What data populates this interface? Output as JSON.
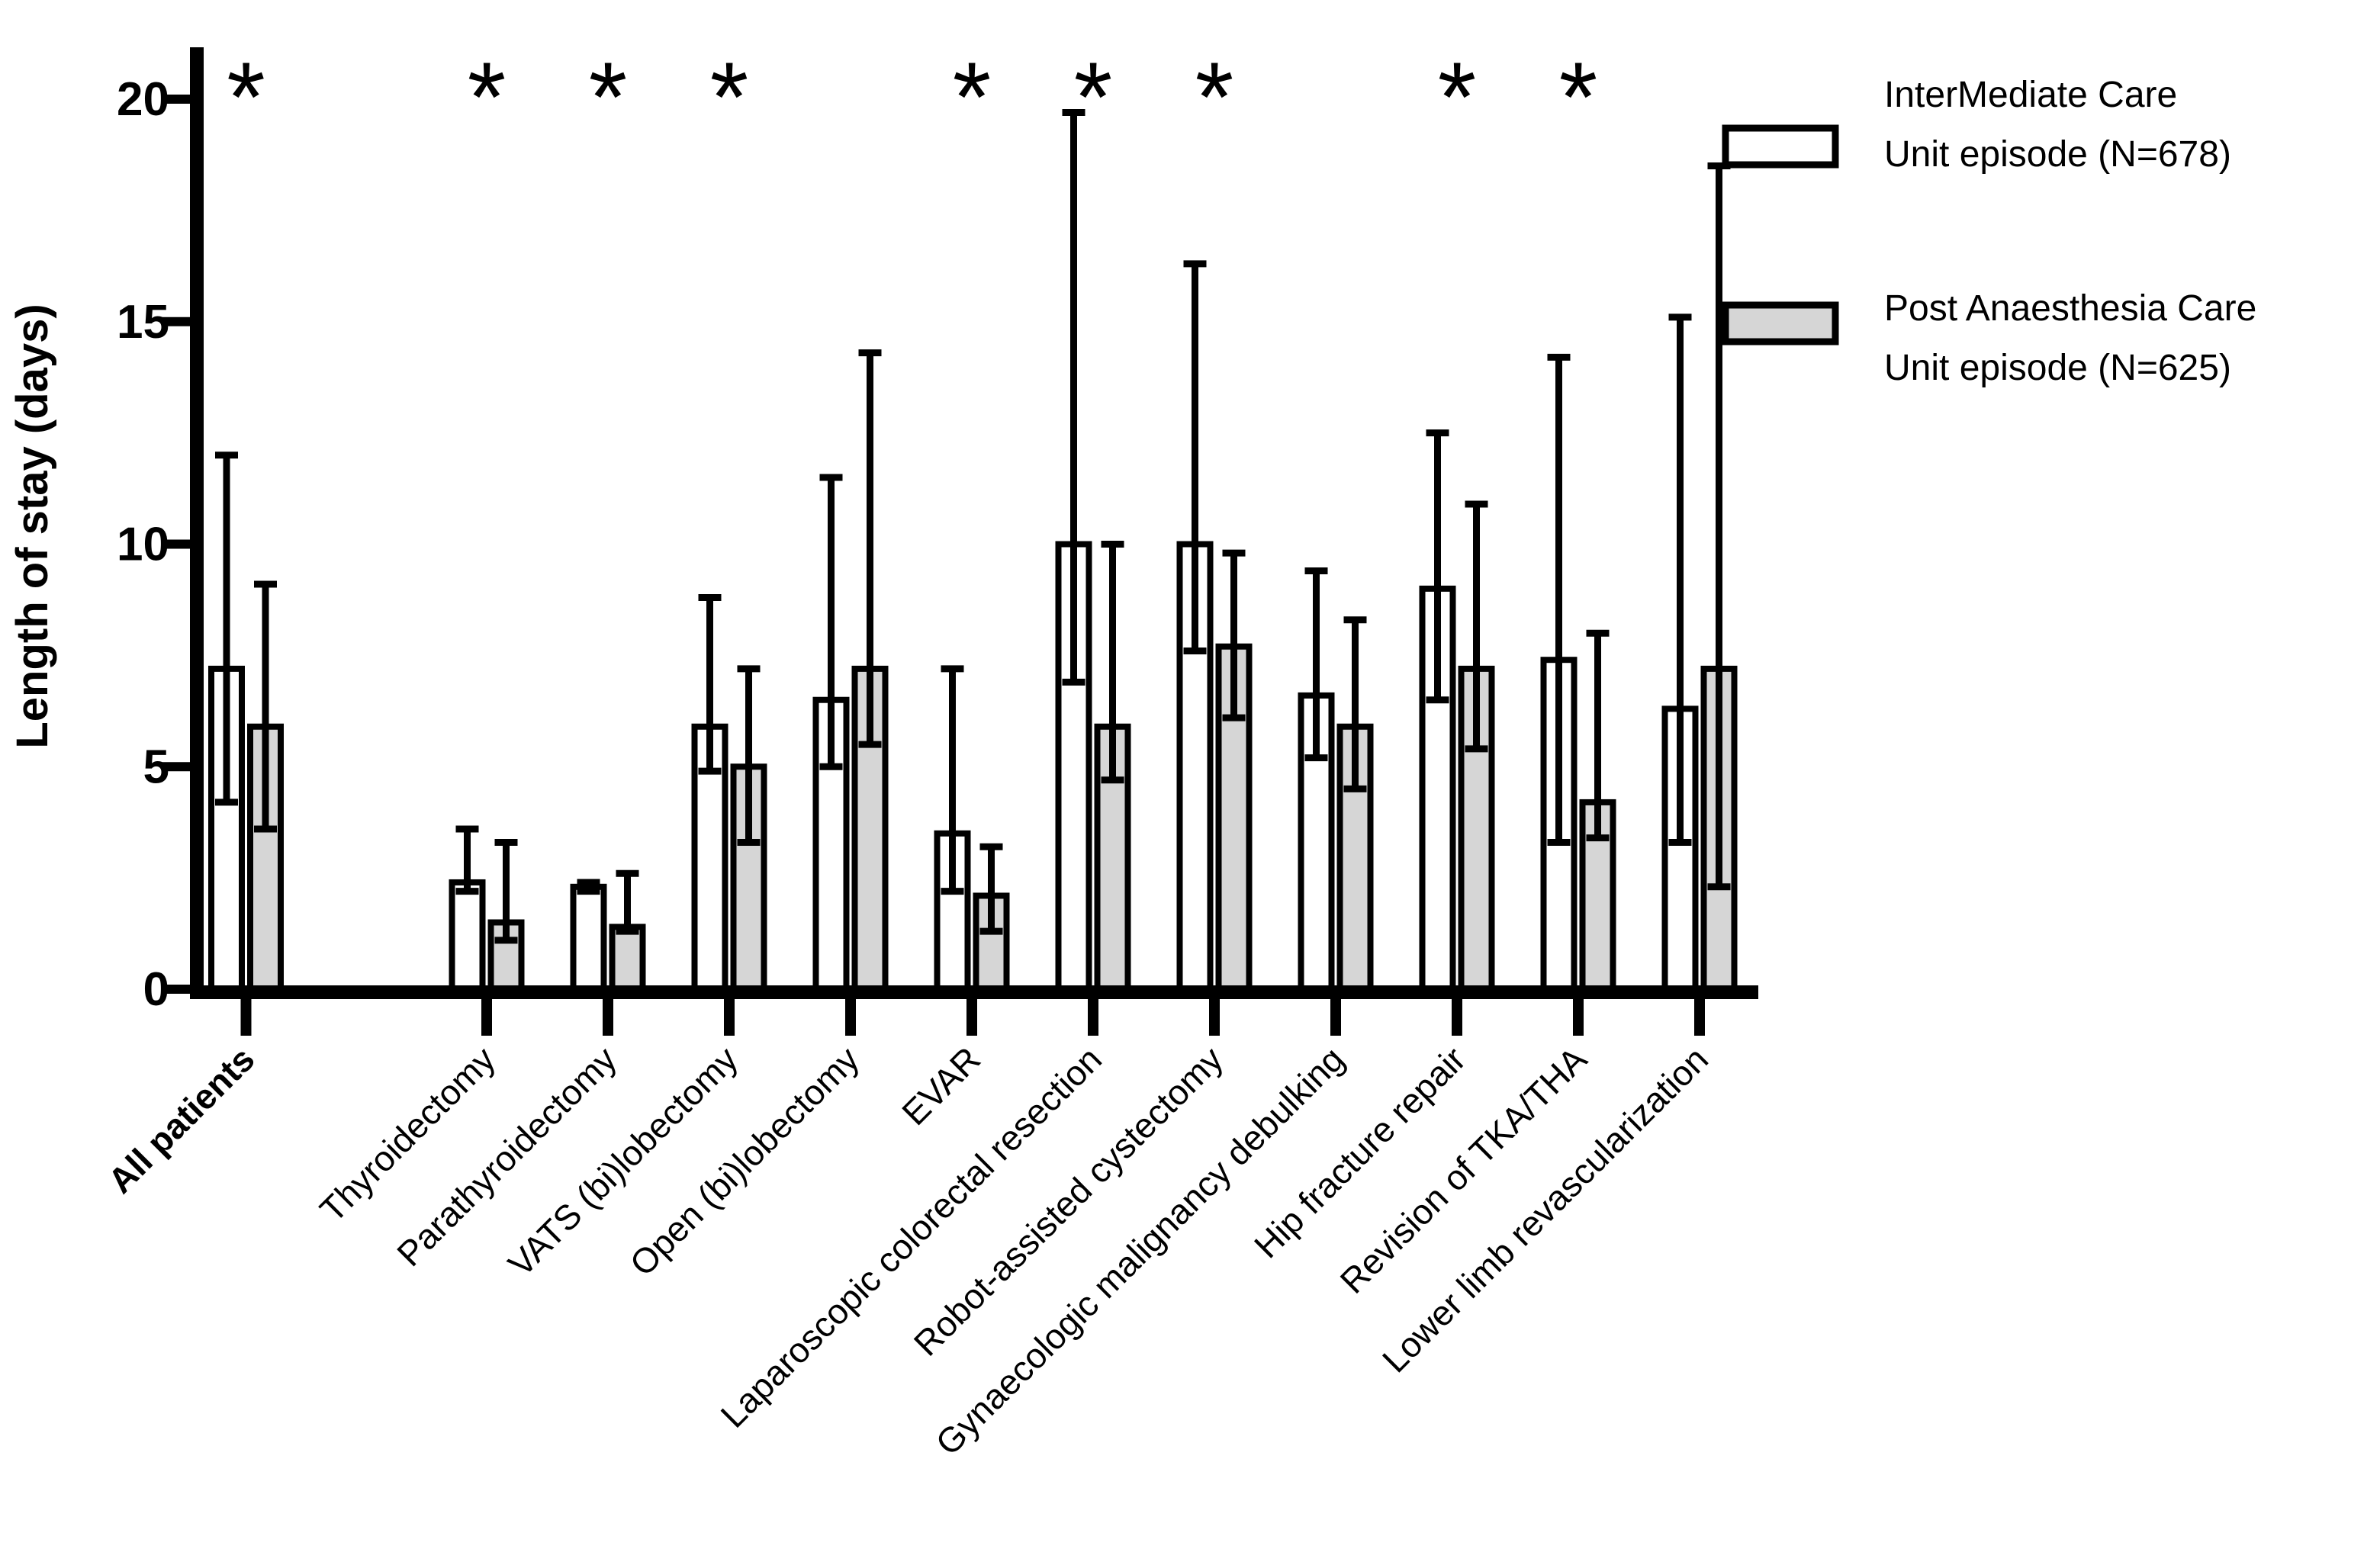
{
  "chart_data": {
    "type": "bar",
    "title": "",
    "xlabel": "",
    "ylabel": "Length of stay (days)",
    "ylim": [
      0,
      21
    ],
    "yticks": [
      0,
      5,
      10,
      15,
      20
    ],
    "grid": false,
    "legend_position": "top-right",
    "significance_symbol": "*",
    "categories": [
      "All patients",
      "Thyroidectomy",
      "Parathyroidectomy",
      "VATS (bi)lobectomy",
      "Open (bi)lobectomy",
      "EVAR",
      "Laparoscopic colorectal resection",
      "Robot-assisted cystectomy",
      "Gynaecologic malignancy debulking",
      "Hip fracture repair",
      "Revision of TKA/THA",
      "Lower limb revascularization"
    ],
    "significant": [
      true,
      true,
      true,
      true,
      false,
      true,
      true,
      true,
      false,
      true,
      true,
      false
    ],
    "series": [
      {
        "name": "InterMediate Care Unit episode (N=678)",
        "fill": "#ffffff",
        "values": [
          7.2,
          2.4,
          2.3,
          5.9,
          6.5,
          3.5,
          10.0,
          10.0,
          6.6,
          9.0,
          7.4,
          6.3
        ],
        "err_low": [
          4.2,
          2.2,
          2.2,
          4.9,
          5.0,
          2.2,
          6.9,
          7.6,
          5.2,
          6.5,
          3.3,
          3.3
        ],
        "err_high": [
          12.0,
          3.6,
          2.4,
          8.8,
          11.5,
          7.2,
          19.7,
          16.3,
          9.4,
          12.5,
          14.2,
          15.1
        ]
      },
      {
        "name": "Post Anaesthesia Care Unit episode (N=625)",
        "fill": "#d6d6d6",
        "values": [
          5.9,
          1.5,
          1.4,
          5.0,
          7.2,
          2.1,
          5.9,
          7.7,
          5.9,
          7.2,
          4.2,
          7.2
        ],
        "err_low": [
          3.6,
          1.1,
          1.3,
          3.3,
          5.5,
          1.3,
          4.7,
          6.1,
          4.5,
          5.4,
          3.4,
          2.3
        ],
        "err_high": [
          9.1,
          3.3,
          2.6,
          7.2,
          14.3,
          3.2,
          10.0,
          9.8,
          8.3,
          10.9,
          8.0,
          18.5
        ]
      }
    ],
    "legend": {
      "items": [
        {
          "line1": "InterMediate Care",
          "line2": "Unit episode (N=678)",
          "fill": "#ffffff"
        },
        {
          "line1": "Post Anaesthesia Care",
          "line2": "Unit episode (N=625)",
          "fill": "#d6d6d6"
        }
      ]
    },
    "colors": {
      "stroke": "#000000",
      "background": "#ffffff"
    }
  }
}
